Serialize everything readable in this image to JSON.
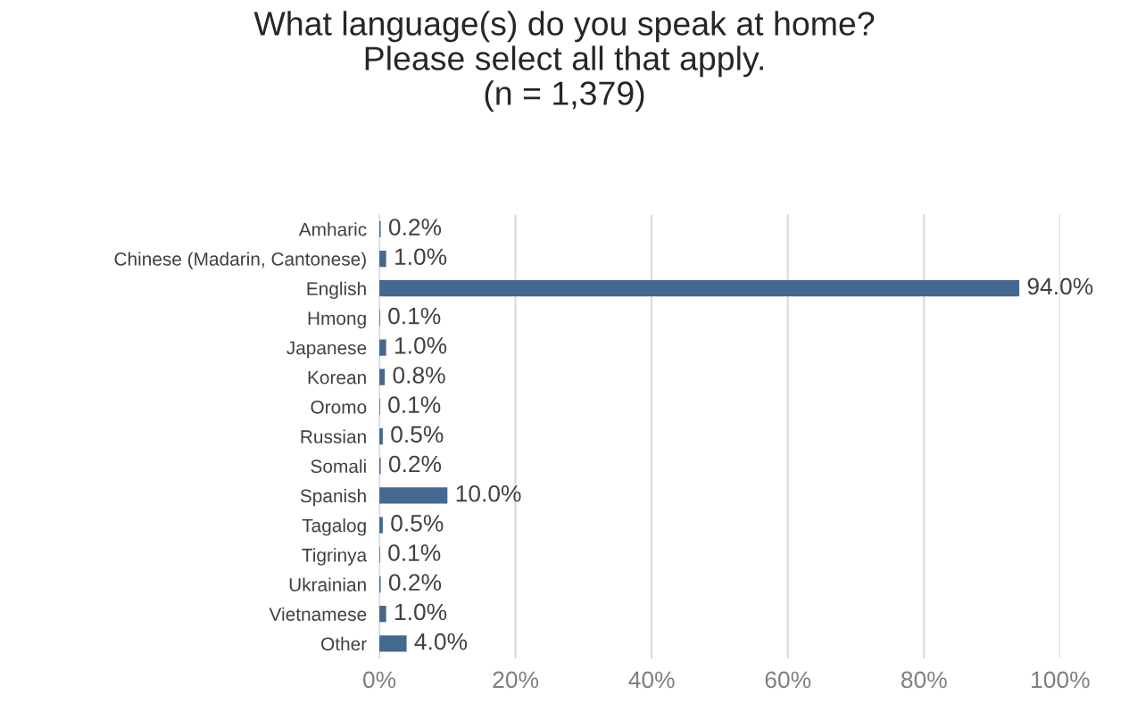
{
  "chart_data": {
    "type": "bar",
    "orientation": "horizontal",
    "title": "What language(s) do you speak at home?\nPlease select all that apply.\n(n = 1,379)",
    "categories": [
      "Amharic",
      "Chinese (Madarin, Cantonese)",
      "English",
      "Hmong",
      "Japanese",
      "Korean",
      "Oromo",
      "Russian",
      "Somali",
      "Spanish",
      "Tagalog",
      "Tigrinya",
      "Ukrainian",
      "Vietnamese",
      "Other"
    ],
    "values": [
      0.2,
      1.0,
      94.0,
      0.1,
      1.0,
      0.8,
      0.1,
      0.5,
      0.2,
      10.0,
      0.5,
      0.1,
      0.2,
      1.0,
      4.0
    ],
    "value_labels": [
      "0.2%",
      "1.0%",
      "94.0%",
      "0.1%",
      "1.0%",
      "0.8%",
      "0.1%",
      "0.5%",
      "0.2%",
      "10.0%",
      "0.5%",
      "0.1%",
      "0.2%",
      "1.0%",
      "4.0%"
    ],
    "color": "#44688f",
    "xlim": [
      0,
      100
    ],
    "xticks": [
      {
        "value": 0,
        "label": "0%"
      },
      {
        "value": 20,
        "label": "20%"
      },
      {
        "value": 40,
        "label": "40%"
      },
      {
        "value": 60,
        "label": "60%"
      },
      {
        "value": 80,
        "label": "80%"
      },
      {
        "value": 100,
        "label": "100%"
      }
    ],
    "grid": "x"
  }
}
